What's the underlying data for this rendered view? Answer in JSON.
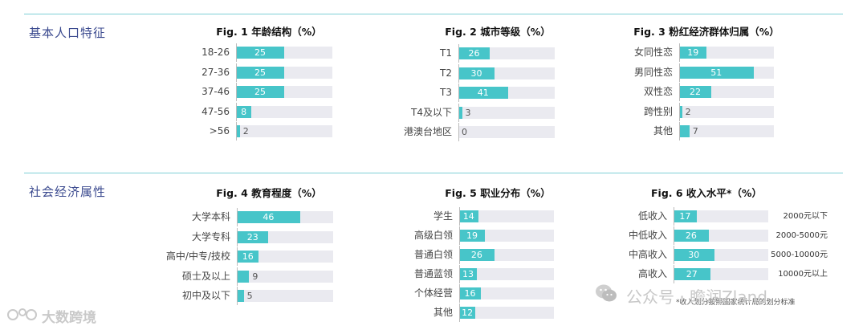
{
  "sections": [
    {
      "title": "基本人口特征"
    },
    {
      "title": "社会经济属性"
    }
  ],
  "colors": {
    "bar": "#47c5c9",
    "track": "#eaeaf0",
    "divider": "#7ecfd6",
    "section_title": "#3b4a8f"
  },
  "chart_data": [
    {
      "type": "bar",
      "orientation": "horizontal",
      "title": "Fig. 1  年龄结构（%）",
      "categories": [
        "18-26",
        "27-36",
        "37-46",
        "47-56",
        ">56"
      ],
      "values": [
        25,
        25,
        25,
        8,
        2
      ],
      "xlim": [
        0,
        50
      ]
    },
    {
      "type": "bar",
      "orientation": "horizontal",
      "title": "Fig. 2  城市等级（%）",
      "categories": [
        "T1",
        "T2",
        "T3",
        "T4及以下",
        "港澳台地区"
      ],
      "values": [
        26,
        30,
        41,
        3,
        0
      ],
      "xlim": [
        0,
        80
      ]
    },
    {
      "type": "bar",
      "orientation": "horizontal",
      "title": "Fig. 3  粉红经济群体归属（%）",
      "categories": [
        "女同性恋",
        "男同性恋",
        "双性恋",
        "跨性别",
        "其他"
      ],
      "values": [
        19,
        51,
        22,
        2,
        7
      ],
      "xlim": [
        0,
        65
      ]
    },
    {
      "type": "bar",
      "orientation": "horizontal",
      "title": "Fig. 4  教育程度（%）",
      "categories": [
        "大学本科",
        "大学专科",
        "高中/中专/技校",
        "硕士及以上",
        "初中及以下"
      ],
      "values": [
        46,
        23,
        16,
        9,
        5
      ],
      "xlim": [
        0,
        70
      ]
    },
    {
      "type": "bar",
      "orientation": "horizontal",
      "title": "Fig. 5  职业分布（%）",
      "categories": [
        "学生",
        "高级白领",
        "普通白领",
        "普通蓝领",
        "个体经营",
        "其他"
      ],
      "values": [
        14,
        19,
        26,
        13,
        16,
        12
      ],
      "xlim": [
        0,
        70
      ]
    },
    {
      "type": "bar",
      "orientation": "horizontal",
      "title": "Fig. 6  收入水平*（%）",
      "categories": [
        "低收入",
        "中低收入",
        "中高收入",
        "高收入"
      ],
      "values": [
        17,
        26,
        30,
        27
      ],
      "xlim": [
        0,
        70
      ],
      "annotations": [
        "2000元以下",
        "2000-5000元",
        "5000-10000元",
        "10000元以上"
      ]
    }
  ],
  "footnote": "*收入划分按照国家统计局的划分标准",
  "watermark": {
    "text": "公众号 · 瞻润Zland",
    "logo_text": "大数跨境"
  }
}
